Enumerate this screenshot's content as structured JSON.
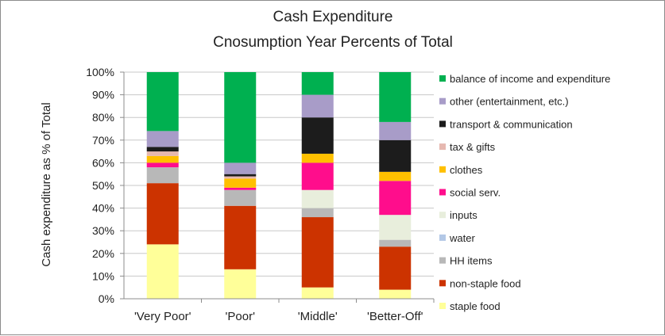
{
  "chart_data": {
    "type": "bar",
    "stacked": true,
    "title_lines": [
      "Cash Expenditure",
      "Cnosumption Year Percents of Total"
    ],
    "xlabel": "",
    "ylabel": "Cash expenditure as % of Total",
    "ylim": [
      0,
      100
    ],
    "yticks": [
      "0%",
      "10%",
      "20%",
      "30%",
      "40%",
      "50%",
      "60%",
      "70%",
      "80%",
      "90%",
      "100%"
    ],
    "categories": [
      "'Very Poor'",
      "'Poor'",
      "'Middle'",
      "'Better-Off'"
    ],
    "legend_position": "right",
    "series": [
      {
        "name": "staple food",
        "color": "#ffff99",
        "values": [
          24,
          13,
          5,
          4
        ]
      },
      {
        "name": "non-staple food",
        "color": "#cc3300",
        "values": [
          27,
          28,
          31,
          19
        ]
      },
      {
        "name": "HH items",
        "color": "#b8b8b8",
        "values": [
          7,
          7,
          4,
          3
        ]
      },
      {
        "name": "water",
        "color": "#b3c8e6",
        "values": [
          0,
          0,
          0,
          0
        ]
      },
      {
        "name": "inputs",
        "color": "#e8eedc",
        "values": [
          0,
          0,
          8,
          11
        ]
      },
      {
        "name": "social serv.",
        "color": "#ff0d8c",
        "values": [
          2,
          1,
          12,
          15
        ]
      },
      {
        "name": "clothes",
        "color": "#ffc000",
        "values": [
          3,
          4,
          4,
          4
        ]
      },
      {
        "name": "tax & gifts",
        "color": "#e6b8b0",
        "values": [
          2,
          1,
          0,
          0
        ]
      },
      {
        "name": "transport & communication",
        "color": "#1c1c1c",
        "values": [
          2,
          1,
          16,
          14
        ]
      },
      {
        "name": "other (entertainment, etc.)",
        "color": "#a89cc8",
        "values": [
          7,
          5,
          10,
          8
        ]
      },
      {
        "name": "balance of income and expenditure",
        "color": "#00b050",
        "values": [
          26,
          40,
          10,
          22
        ]
      }
    ]
  }
}
